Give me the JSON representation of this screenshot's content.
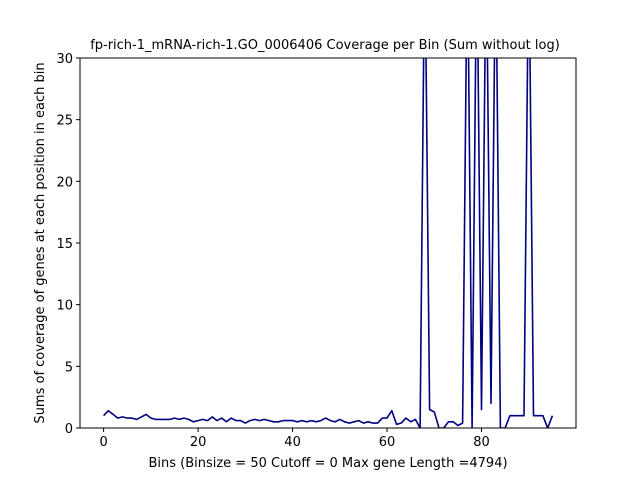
{
  "chart_data": {
    "type": "line",
    "title": "fp-rich-1_mRNA-rich-1.GO_0006406 Coverage per Bin (Sum without log)",
    "xlabel": "Bins  (Binsize = 50 Cutoff = 0 Max gene Length =4794)",
    "ylabel": "Sums of coverage of genes at each position in each bin",
    "xlim": [
      -5,
      100
    ],
    "ylim": [
      0,
      30
    ],
    "xticks": [
      0,
      20,
      40,
      60,
      80
    ],
    "yticks": [
      0,
      5,
      10,
      15,
      20,
      25,
      30
    ],
    "grid": false,
    "line_color": "#000080",
    "series": [
      {
        "x": [
          0,
          1,
          2,
          3,
          4,
          5,
          6,
          7,
          8,
          9,
          10,
          11,
          12,
          13,
          14,
          15,
          16,
          17,
          18,
          19,
          20,
          21,
          22,
          23,
          24,
          25,
          26,
          27,
          28,
          29,
          30,
          31,
          32,
          33,
          34,
          35,
          36,
          37,
          38,
          39,
          40,
          41,
          42,
          43,
          44,
          45,
          46,
          47,
          48,
          49,
          50,
          51,
          52,
          53,
          54,
          55,
          56,
          57,
          58,
          59,
          60,
          61,
          62,
          63,
          64,
          65,
          66,
          67,
          68,
          69,
          70,
          71,
          72,
          73,
          74,
          75,
          76,
          77,
          78,
          79,
          80,
          81,
          82,
          83,
          84,
          85,
          86,
          87,
          88,
          89,
          90,
          91,
          92,
          93,
          94,
          95
        ],
        "y": [
          1.0,
          1.4,
          1.1,
          0.8,
          0.9,
          0.8,
          0.8,
          0.7,
          0.9,
          1.1,
          0.8,
          0.7,
          0.7,
          0.7,
          0.7,
          0.8,
          0.7,
          0.8,
          0.7,
          0.5,
          0.6,
          0.7,
          0.6,
          0.9,
          0.6,
          0.8,
          0.5,
          0.8,
          0.6,
          0.6,
          0.4,
          0.6,
          0.7,
          0.6,
          0.7,
          0.6,
          0.5,
          0.5,
          0.6,
          0.6,
          0.6,
          0.5,
          0.6,
          0.5,
          0.6,
          0.5,
          0.6,
          0.8,
          0.6,
          0.5,
          0.7,
          0.5,
          0.4,
          0.5,
          0.6,
          0.4,
          0.5,
          0.4,
          0.4,
          0.8,
          0.8,
          1.4,
          0.3,
          0.4,
          0.8,
          0.5,
          0.7,
          0,
          40,
          1.5,
          1.3,
          0,
          0,
          0.5,
          0.5,
          0.2,
          0.4,
          40,
          0,
          40,
          1.5,
          40,
          2,
          40,
          0,
          0,
          1,
          1,
          1,
          1,
          40,
          1,
          1,
          1,
          0,
          1
        ]
      }
    ]
  }
}
